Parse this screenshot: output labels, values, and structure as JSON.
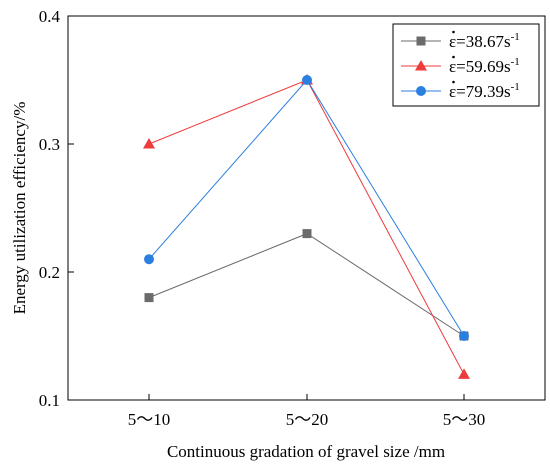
{
  "chart_data": {
    "type": "line",
    "xlabel": "Continuous gradation of gravel size /mm",
    "ylabel": "Energy utilization efficiency/%",
    "categories": [
      "5～10",
      "5～20",
      "5～30"
    ],
    "ylim": [
      0.1,
      0.4
    ],
    "yticks": [
      "0.1",
      "0.2",
      "0.3",
      "0.4"
    ],
    "grid": false,
    "legend_position": "top-right",
    "series": [
      {
        "name": "ε=38.67s",
        "name_exponent": "-1",
        "values": [
          0.18,
          0.23,
          0.15
        ],
        "color": "#6b6b6b",
        "marker": "square"
      },
      {
        "name": "ε=59.69s",
        "name_exponent": "-1",
        "values": [
          0.3,
          0.35,
          0.12
        ],
        "color": "#ee3b3b",
        "marker": "triangle"
      },
      {
        "name": "ε=79.39s",
        "name_exponent": "-1",
        "values": [
          0.21,
          0.35,
          0.15
        ],
        "color": "#2b7fe0",
        "marker": "circle"
      }
    ]
  }
}
